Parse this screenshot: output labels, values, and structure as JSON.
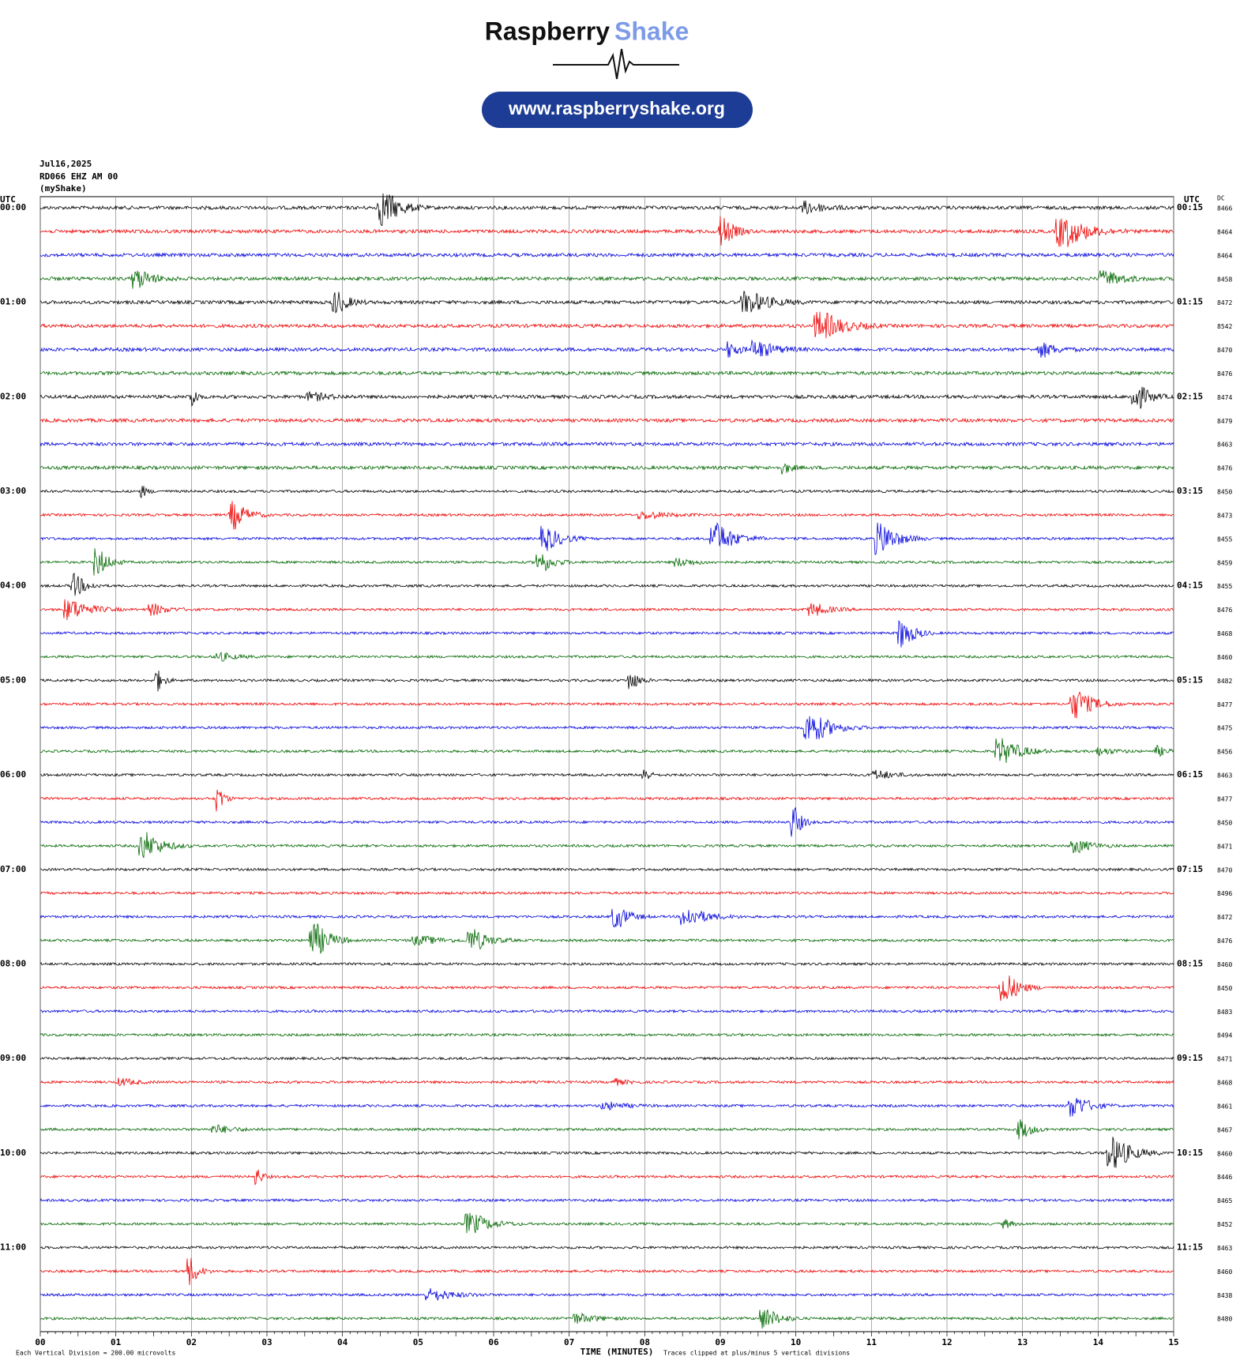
{
  "chart_data": {
    "type": "helicorder",
    "brand_first": "Raspberry",
    "brand_second": "Shake",
    "url": "www.raspberryshake.org",
    "date": "Jul16,2025",
    "station": "RD066 EHZ AM 00",
    "network": "(myShake)",
    "left_axis_title": "UTC",
    "right_axis_title": "UTC",
    "dc_title": "DC",
    "xlabel": "TIME (MINUTES)",
    "scale_note": "Each Vertical Division =  200.00 microvolts",
    "clip_note": "Traces clipped at plus/minus 5 vertical divisions",
    "xlim": [
      0,
      15
    ],
    "xticks": [
      {
        "value": 0,
        "label": "00"
      },
      {
        "value": 1,
        "label": "01"
      },
      {
        "value": 2,
        "label": "02"
      },
      {
        "value": 3,
        "label": "03"
      },
      {
        "value": 4,
        "label": "04"
      },
      {
        "value": 5,
        "label": "05"
      },
      {
        "value": 6,
        "label": "06"
      },
      {
        "value": 7,
        "label": "07"
      },
      {
        "value": 8,
        "label": "08"
      },
      {
        "value": 9,
        "label": "09"
      },
      {
        "value": 10,
        "label": "10"
      },
      {
        "value": 11,
        "label": "11"
      },
      {
        "value": 12,
        "label": "12"
      },
      {
        "value": 13,
        "label": "13"
      },
      {
        "value": 14,
        "label": "14"
      },
      {
        "value": 15,
        "label": "15"
      }
    ],
    "left_labels": [
      "00:00",
      "01:00",
      "02:00",
      "03:00",
      "04:00",
      "05:00",
      "06:00",
      "07:00",
      "08:00",
      "09:00",
      "10:00",
      "11:00"
    ],
    "right_labels": [
      "00:15",
      "01:15",
      "02:15",
      "03:15",
      "04:15",
      "05:15",
      "06:15",
      "07:15",
      "08:15",
      "09:15",
      "10:15",
      "11:15"
    ],
    "trace_colors": [
      "#000000",
      "#ee0000",
      "#0000dd",
      "#006600"
    ],
    "dc": [
      8466,
      8464,
      8464,
      8458,
      8472,
      8542,
      8470,
      8476,
      8474,
      8479,
      8463,
      8476,
      8450,
      8473,
      8455,
      8459,
      8455,
      8476,
      8468,
      8460,
      8482,
      8477,
      8475,
      8456,
      8463,
      8477,
      8450,
      8471,
      8470,
      8496,
      8472,
      8476,
      8460,
      8450,
      8483,
      8494,
      8471,
      8468,
      8461,
      8467,
      8460,
      8446,
      8465,
      8452,
      8463,
      8460,
      8438,
      8480
    ]
  }
}
